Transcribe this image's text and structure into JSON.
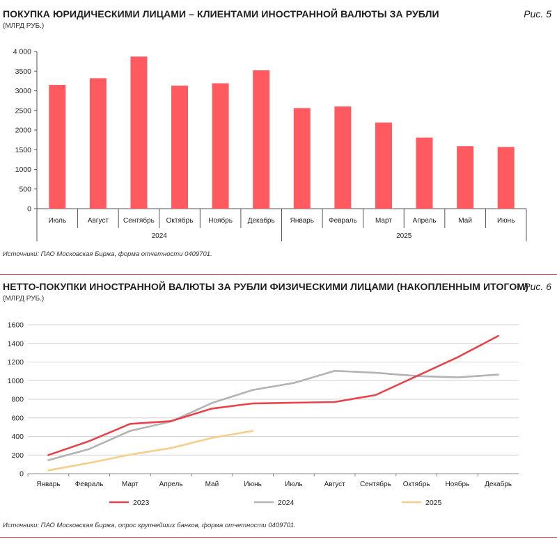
{
  "figure1": {
    "title": "ПОКУПКА ЮРИДИЧЕСКИМИ ЛИЦАМИ – КЛИЕНТАМИ ИНОСТРАННОЙ ВАЛЮТЫ ЗА РУБЛИ",
    "subtitle": "(МЛРД РУБ.)",
    "fig_label": "Рис. 5",
    "source": "Источники: ПАО Московская Биржа, форма отчетности 0409701.",
    "bar_color": "#ff5a5f"
  },
  "figure2": {
    "title": "НЕТТО-ПОКУПКИ ИНОСТРАННОЙ ВАЛЮТЫ ЗА РУБЛИ ФИЗИЧЕСКИМИ ЛИЦАМИ (НАКОПЛЕННЫМ ИТОГОМ)",
    "subtitle": "(МЛРД РУБ.)",
    "fig_label": "Рис. 6",
    "source": "Источники: ПАО Московская Биржа, опрос крупнейших банков, форма отчетности 0409701."
  },
  "chart_data": [
    {
      "type": "bar",
      "categories": [
        "Июль",
        "Август",
        "Сентябрь",
        "Октябрь",
        "Ноябрь",
        "Декабрь",
        "Январь",
        "Февраль",
        "Март",
        "Апрель",
        "Май",
        "Июнь"
      ],
      "groups": [
        {
          "label": "2024",
          "start": 0,
          "end": 5
        },
        {
          "label": "2025",
          "start": 6,
          "end": 11
        }
      ],
      "values": [
        3150,
        3320,
        3870,
        3130,
        3190,
        3520,
        2560,
        2600,
        2190,
        1810,
        1590,
        1570
      ],
      "ylim": [
        0,
        4000
      ],
      "yticks": [
        0,
        500,
        1000,
        1500,
        2000,
        2500,
        3000,
        3500,
        4000
      ],
      "ytick_labels": [
        "0",
        "500",
        "1000",
        "1500",
        "2000",
        "2500",
        "3000",
        "3500",
        "4 000"
      ],
      "grid": false
    },
    {
      "type": "line",
      "categories": [
        "Январь",
        "Февраль",
        "Март",
        "Апрель",
        "Май",
        "Июнь",
        "Июль",
        "Август",
        "Сентябрь",
        "Октябрь",
        "Ноябрь",
        "Декабрь"
      ],
      "series": [
        {
          "name": "2023",
          "color": "#e8424a",
          "values": [
            200,
            350,
            535,
            565,
            700,
            755,
            null,
            770,
            845,
            null,
            1250,
            1480
          ]
        },
        {
          "name": "2024",
          "color": "#b3b3b3",
          "values": [
            145,
            265,
            460,
            560,
            760,
            900,
            975,
            1105,
            1085,
            1050,
            1035,
            1065
          ]
        },
        {
          "name": "2025",
          "color": "#f7cd8a",
          "values": [
            35,
            115,
            205,
            275,
            385,
            460,
            null,
            null,
            null,
            null,
            null,
            null
          ]
        }
      ],
      "ylim": [
        0,
        1600
      ],
      "yticks": [
        0,
        200,
        400,
        600,
        800,
        1000,
        1200,
        1400,
        1600
      ],
      "grid": true,
      "legend_position": "bottom"
    }
  ]
}
